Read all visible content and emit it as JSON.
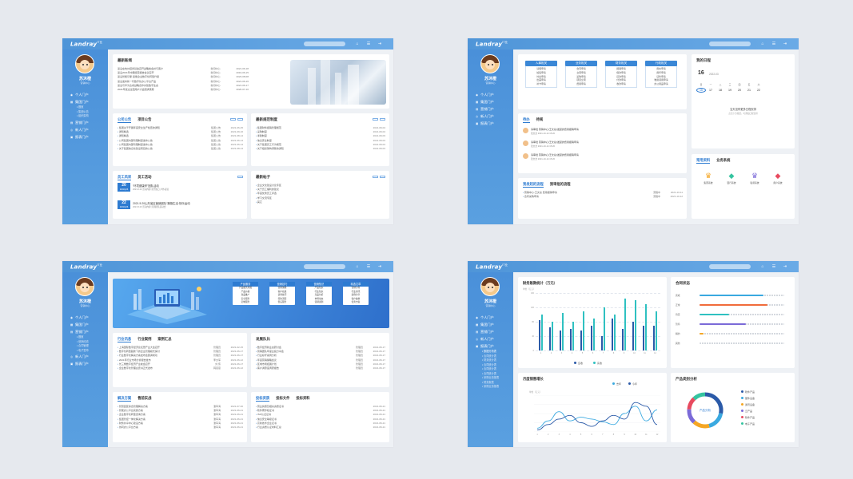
{
  "brand": {
    "logo": "Landray",
    "logo_sup": "IT业"
  },
  "user": {
    "name": "苏沐橙",
    "role": "营销中心"
  },
  "colors": {
    "primary": "#4a90d9",
    "accent": "#2d7bd1",
    "bar_a": "#2b5aa8",
    "bar_b": "#2fc1c1"
  },
  "icons": {
    "search": "search-icon",
    "bell": "bell-icon",
    "menu": "menu-icon",
    "logout": "logout-icon"
  },
  "menus": {
    "s1": [
      {
        "label": "个人门户",
        "icon": "user-icon",
        "subs": []
      },
      {
        "label": "集团门户",
        "icon": "building-icon",
        "subs": [
          "首页",
          "集团公告",
          "组织架构"
        ]
      },
      {
        "label": "营销门户",
        "icon": "chart-icon",
        "subs": []
      },
      {
        "label": "新人门户",
        "icon": "people-icon",
        "subs": []
      },
      {
        "label": "报表门户",
        "icon": "report-icon",
        "subs": []
      }
    ],
    "s2": [
      {
        "label": "个人门户",
        "icon": "user-icon",
        "subs": []
      },
      {
        "label": "集团门户",
        "icon": "building-icon",
        "subs": []
      },
      {
        "label": "营销门户",
        "icon": "chart-icon",
        "subs": []
      },
      {
        "label": "新人门户",
        "icon": "people-icon",
        "subs": []
      },
      {
        "label": "报表门户",
        "icon": "report-icon",
        "subs": []
      }
    ],
    "s3": [
      {
        "label": "个人门户",
        "icon": "user-icon",
        "subs": []
      },
      {
        "label": "集团门户",
        "icon": "building-icon",
        "subs": []
      },
      {
        "label": "营销门户",
        "icon": "chart-icon",
        "subs": [
          "首页",
          "营销动态",
          "合同管理",
          "电子签章"
        ]
      },
      {
        "label": "新人门户",
        "icon": "people-icon",
        "subs": []
      },
      {
        "label": "报表门户",
        "icon": "report-icon",
        "subs": []
      }
    ],
    "s4": [
      {
        "label": "个人门户",
        "icon": "user-icon",
        "subs": []
      },
      {
        "label": "集团门户",
        "icon": "building-icon",
        "subs": []
      },
      {
        "label": "营销门户",
        "icon": "chart-icon",
        "subs": []
      },
      {
        "label": "新人门户",
        "icon": "people-icon",
        "subs": []
      },
      {
        "label": "报表门户",
        "icon": "report-icon",
        "subs": [
          "数据分析表",
          "合同统计表",
          "财务统计表",
          "合同统计表",
          "合同统计表",
          "合同统计表",
          "采购业务报表",
          "财务报表",
          "采购业务报表"
        ]
      }
    ]
  },
  "s1": {
    "news": {
      "title": "最新新闻",
      "rows": [
        {
          "t": "蓝凌在杭州招商基金召开战略峰会并与客户",
          "c": "新闻中心",
          "d": "2021-06-18"
        },
        {
          "t": "蓝凌2021年中期经营报告会议召开",
          "c": "新闻中心",
          "d": "2019-06-15"
        },
        {
          "t": "蓝凌智能引擎·赋能企业数字化转型升级",
          "c": "新闻中心",
          "d": "2023-08-08"
        },
        {
          "t": "蓝凌发布新一代数字化办公平台产品",
          "c": "新闻中心",
          "d": "2021-06-16"
        },
        {
          "t": "蓝凌与华为达成战略合作共建数字生态",
          "c": "新闻中心",
          "d": "2021-06-17"
        },
        {
          "t": "2021年蓝凌全国用户大会圆满落幕",
          "c": "新闻中心",
          "d": "2020-07-10"
        }
      ]
    },
    "company": {
      "tabs": [
        "公司公告",
        "项目公告"
      ],
      "rows": [
        {
          "t": "集团关于开展年度安全生产检查的通知",
          "c": "集团公告",
          "d": "2021-06-25"
        },
        {
          "t": "通知精选",
          "c": "集团公告",
          "d": "2021-09-16"
        },
        {
          "t": "通知精选",
          "c": "集团公告",
          "d": "2021-08-14"
        },
        {
          "t": "公司集团内部管理制度发布公告",
          "c": "集团公告",
          "d": "2021-06-14"
        },
        {
          "t": "公司集团内部管理制度发布公告",
          "c": "集团公告",
          "d": "2021-06-14"
        },
        {
          "t": "关于集团信息化建设项目的公告",
          "c": "集团公告",
          "d": "2021-08-14"
        }
      ]
    },
    "policy": {
      "title": "最新规范制度",
      "rows": [
        {
          "t": "集团财务报销管理规范",
          "d": "2021-09-04"
        },
        {
          "t": "采购制度",
          "d": "2021-09-04"
        },
        {
          "t": "考勤制度",
          "d": "2021-09-03"
        },
        {
          "t": "信息安全制度",
          "d": "2021-09-04"
        },
        {
          "t": "关于集团员工行为规范",
          "d": "2021-09-04"
        },
        {
          "t": "关于组织架构调整的通知",
          "d": "2021-09-04"
        }
      ]
    },
    "staff": {
      "tabs": [
        "员工风采",
        "员工活动"
      ],
      "events": [
        {
          "day": "20",
          "ym": "2021年06",
          "title": "“环境健康杯”团队活动",
          "sub": "2021.6.20 活动内容 欢乐假日 户外拓展"
        },
        {
          "day": "22",
          "ym": "2021年06",
          "title": "2021.5.20山东省区营销团队“拥抱生活·快乐运动",
          "sub": "2021.5.20 活动内容 营销团队运动会"
        }
      ]
    },
    "posts": {
      "title": "最新帖子",
      "rows": [
        "企业文化建设讨论专区",
        "关于员工福利的建议",
        "年度优秀员工评选",
        "学习交流专区",
        "其它"
      ]
    }
  },
  "s2": {
    "buttons": [
      {
        "title": "人事相关",
        "items": [
          "请假申请",
          "加班申请",
          "外出申请",
          "出差申请",
          "补卡申请"
        ]
      },
      {
        "title": "业务相关",
        "items": [
          "合同申请",
          "立项申请",
          "采购申请",
          "项目立项",
          "费用申请"
        ]
      },
      {
        "title": "财务相关",
        "items": [
          "报销申请",
          "借款申请",
          "还款申请",
          "付款申请",
          "收款申请"
        ]
      },
      {
        "title": "行政相关",
        "items": [
          "用车申请",
          "用印申请",
          "证件申请",
          "物资领用申请",
          "办公用品申请"
        ]
      }
    ],
    "todo": {
      "tabs": [
        "待办",
        "待阅"
      ],
      "items": [
        {
          "l1": "请审批 营销中心(王文总)发起的费用报销申请",
          "l2": "张文文 2021-10-14 15:20"
        },
        {
          "l1": "请审批 营销中心(王文总)发起的费用报销申请",
          "l2": "张文文 2021-10-14 15:20"
        },
        {
          "l1": "请审批 营销中心(王文总)发起的费用报销申请",
          "l2": "张文文 2021-10-14 15:20"
        }
      ]
    },
    "flow": {
      "tabs": [
        "我发起的流程",
        "我审批的流程"
      ],
      "rows": [
        {
          "t": "营销中心-王文总 费用报销申请",
          "d": "2021-10-11",
          "s": "流程中"
        },
        {
          "t": "合同采购申请",
          "d": "2021-10-12",
          "s": "流程中"
        }
      ]
    },
    "calendar": {
      "title": "我的日程",
      "today": "16",
      "month": "2022-03",
      "weekdays": [
        "日",
        "一",
        "二",
        "三",
        "四",
        "五",
        "六"
      ],
      "days": [
        "16",
        "17",
        "18",
        "19",
        "20",
        "21",
        "22"
      ],
      "empty": "当天没有更多日程安排",
      "hint": "点击下方按钮，可添加日程安排"
    },
    "common": {
      "tabs": [
        "常用资料",
        "业务系统"
      ],
      "items": [
        {
          "label": "集团系统",
          "icon": "crown-icon",
          "color": "#f5a623"
        },
        {
          "label": "银行系统",
          "icon": "gem-icon",
          "color": "#35c4a0"
        },
        {
          "label": "私募系统",
          "icon": "crown-icon",
          "color": "#7b6ad8"
        },
        {
          "label": "用户系统",
          "icon": "gem-icon",
          "color": "#e84a5f"
        }
      ]
    }
  },
  "s3": {
    "banner": [
      {
        "title": "产品服务",
        "items": [
          "产品服务月报",
          "产品价格",
          "新品推广",
          "安全服务",
          "定制服务"
        ]
      },
      {
        "title": "营销技巧",
        "items": [
          "营销策略",
          "客户拓展",
          "谈判技巧",
          "签约流程",
          "售后服务"
        ]
      },
      {
        "title": "营销知识",
        "items": [
          "产品知识",
          "行业知识",
          "竞品分析",
          "市场动态",
          "营销案例"
        ]
      },
      {
        "title": "精选文章",
        "items": [
          "营销心得",
          "行业资讯",
          "案例分享",
          "客户故事",
          "优秀方案"
        ]
      }
    ],
    "industry": {
      "tabs": [
        "行业讯息",
        "行业案例",
        "案例汇总"
      ],
      "rows": [
        {
          "t": "上海国际数字经济论坛暨产业大会召开",
          "c": "管理员",
          "d": "2021-02-15"
        },
        {
          "t": "数字化转型趋势下的企业管理模式探讨",
          "c": "管理员",
          "d": "2021-06-17"
        },
        {
          "t": "行业数字化解决方案发布会圆满成功",
          "c": "管理员",
          "d": "2021-06-17"
        },
        {
          "t": "2021年行业市场分析报告发布",
          "c": "李文军",
          "d": "2021-06-12"
        },
        {
          "t": "长三角数字经济产业峰会召开",
          "c": "刘 伟",
          "d": "2021-06-17"
        },
        {
          "t": "企业数字化管理白皮书正式发布",
          "c": "韩思思",
          "d": "2021-06-12"
        }
      ]
    },
    "dev": {
      "title": "发展队比",
      "rows": [
        {
          "t": "数字经济新业态研讨会",
          "c": "管理员",
          "d": "2021-06-17"
        },
        {
          "t": "营销团队年度业绩分享会",
          "c": "管理员",
          "d": "2021-06-17"
        },
        {
          "t": "行业标杆案例分析",
          "c": "管理员",
          "d": "2021-06-17"
        },
        {
          "t": "年度营销策略会议",
          "c": "管理员",
          "d": "2021-06-17"
        },
        {
          "t": "区域市场拓展计划",
          "c": "管理员",
          "d": "2021-06-17"
        },
        {
          "t": "客户满意度调研报告",
          "c": "管理员",
          "d": "2021-06-17"
        }
      ]
    },
    "solutions": {
      "tabs": [
        "解决方案",
        "售前实战"
      ],
      "rows": [
        {
          "t": "智慧园区综合管理解决方案",
          "c": "潘军海",
          "d": "2021-07-30"
        },
        {
          "t": "智能办公平台实施方案",
          "c": "潘军海",
          "d": "2021-06-21"
        },
        {
          "t": "企业数字化转型咨询方案",
          "c": "潘军海",
          "d": "2021-06-21"
        },
        {
          "t": "集团管控一体化解决方案",
          "c": "潘军海",
          "d": "2021-06-21"
        },
        {
          "t": "财务共享中心建设方案",
          "c": "潘军海",
          "d": "2021-06-21"
        },
        {
          "t": "协同办公平台方案",
          "c": "潘军海",
          "d": "2021-06-21"
        }
      ]
    },
    "bids": {
      "tabs": [
        "投标资质",
        "投标文件",
        "投标资料"
      ],
      "rows": [
        {
          "t": "营业执照及相关资质证书",
          "d": "2021-06-21"
        },
        {
          "t": "软件著作权证书",
          "d": "2021-06-21"
        },
        {
          "t": "ISO认证证书",
          "d": "2021-06-21"
        },
        {
          "t": "信息安全等级证书",
          "d": "2021-06-21"
        },
        {
          "t": "高新技术企业证书",
          "d": "2021-06-21"
        },
        {
          "t": "行业资质认证材料汇总",
          "d": "2021-06-21"
        }
      ]
    }
  },
  "s4": {
    "finance": {
      "title": "财务账款统计（万元）",
      "unit": "单位（万元）",
      "legend": [
        "应收",
        "实收"
      ]
    },
    "contract": {
      "title": "合同状态",
      "items": [
        {
          "label": "完成",
          "pct": 0.75,
          "color": "#3aa9e0"
        },
        {
          "label": "正常",
          "pct": 0.8,
          "color": "#f06c3a"
        },
        {
          "label": "待定",
          "pct": 0.35,
          "color": "#2fc1c1"
        },
        {
          "label": "暂停",
          "pct": 0.55,
          "color": "#7b6ad8"
        },
        {
          "label": "解约",
          "pct": 0.05,
          "color": "#f5a623"
        },
        {
          "label": "其他",
          "pct": 0.0,
          "color": "#bbbbbb"
        }
      ]
    },
    "sales": {
      "title": "月度销售增长",
      "unit": "单位（万元）",
      "legend": [
        "去年",
        "今年"
      ]
    },
    "category": {
      "title": "产品类别分析",
      "center": "产品分析",
      "items": [
        {
          "label": "软件产品",
          "value": 28,
          "color": "#2b5aa8"
        },
        {
          "label": "硬件设备",
          "value": 18,
          "color": "#3aa9e0"
        },
        {
          "label": "通讯设备",
          "value": 16,
          "color": "#f5a623"
        },
        {
          "label": "云产品",
          "value": 14,
          "color": "#7b6ad8"
        },
        {
          "label": "软件产品",
          "value": 12,
          "color": "#e84a5f"
        },
        {
          "label": "电子产品",
          "value": 12,
          "color": "#35c4a0"
        }
      ]
    }
  },
  "chart_data": [
    {
      "type": "bar",
      "title": "财务账款统计（万元）",
      "ylabel": "单位（万元）",
      "categories": [
        "1",
        "2",
        "3",
        "4",
        "5",
        "6",
        "7",
        "8",
        "9",
        "10",
        "11",
        "12"
      ],
      "series": [
        {
          "name": "应收",
          "values": [
            85,
            65,
            55,
            60,
            55,
            70,
            40,
            90,
            60,
            80,
            70,
            70
          ]
        },
        {
          "name": "实收",
          "values": [
            100,
            80,
            105,
            80,
            110,
            90,
            120,
            100,
            145,
            140,
            130,
            110
          ]
        }
      ],
      "ylim": [
        0,
        160
      ],
      "legend": "bottom"
    },
    {
      "type": "line",
      "title": "月度销售增长",
      "ylabel": "单位（万元）",
      "categories": [
        "1",
        "2",
        "3",
        "4",
        "5",
        "6",
        "7",
        "8",
        "9",
        "10",
        "11",
        "12"
      ],
      "series": [
        {
          "name": "去年",
          "values": [
            20,
            60,
            110,
            60,
            80,
            70,
            55,
            40,
            100,
            140,
            60,
            120
          ]
        },
        {
          "name": "今年",
          "values": [
            10,
            40,
            70,
            90,
            50,
            30,
            60,
            90,
            70,
            160,
            140,
            40
          ]
        }
      ],
      "ylim": [
        0,
        200
      ],
      "legend": "top-right"
    },
    {
      "type": "pie",
      "title": "产品类别分析",
      "categories": [
        "软件产品",
        "硬件设备",
        "通讯设备",
        "云产品",
        "软件产品",
        "电子产品"
      ],
      "values": [
        28,
        18,
        16,
        14,
        12,
        12
      ]
    }
  ]
}
